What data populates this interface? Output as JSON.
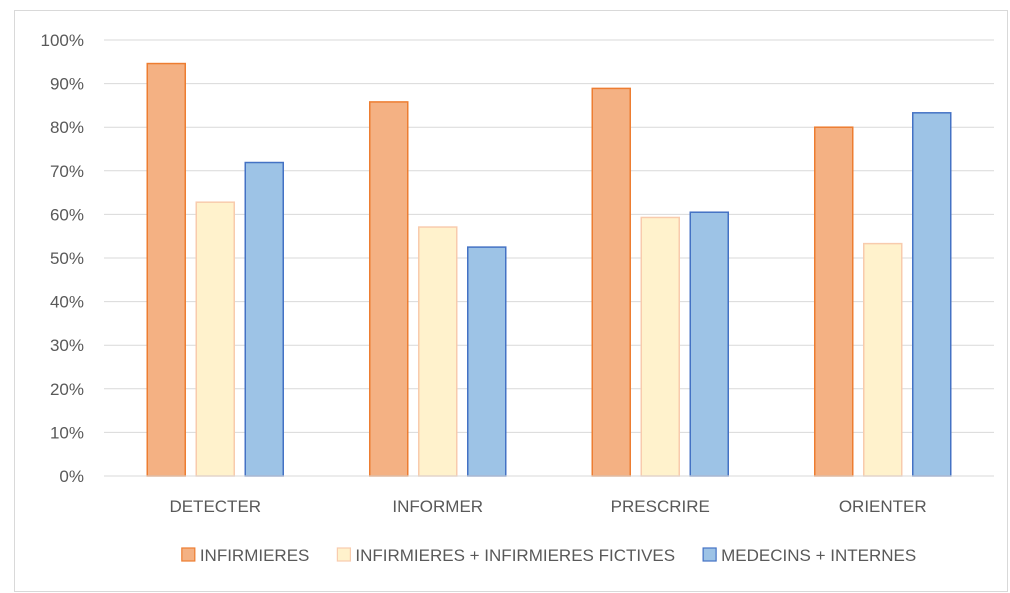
{
  "chart_data": {
    "type": "bar",
    "categories": [
      "DETECTER",
      "INFORMER",
      "PRESCRIRE",
      "ORIENTER"
    ],
    "series": [
      {
        "name": "INFIRMIERES",
        "values": [
          94.6,
          85.8,
          88.9,
          80.0
        ],
        "fill": "#f4b183",
        "stroke": "#ed7d31"
      },
      {
        "name": "INFIRMIERES + INFIRMIERES FICTIVES",
        "values": [
          62.8,
          57.1,
          59.3,
          53.3
        ],
        "fill": "#fff2cc",
        "stroke": "#f8cbad"
      },
      {
        "name": "MEDECINS + INTERNES",
        "values": [
          71.9,
          52.5,
          60.5,
          83.3
        ],
        "fill": "#9dc3e6",
        "stroke": "#4472c4"
      }
    ],
    "ylim": [
      0,
      100
    ],
    "yticks": [
      "0%",
      "10%",
      "20%",
      "30%",
      "40%",
      "50%",
      "60%",
      "70%",
      "80%",
      "90%",
      "100%"
    ],
    "grid": true,
    "legend_position": "bottom",
    "title": "",
    "xlabel": "",
    "ylabel": ""
  }
}
